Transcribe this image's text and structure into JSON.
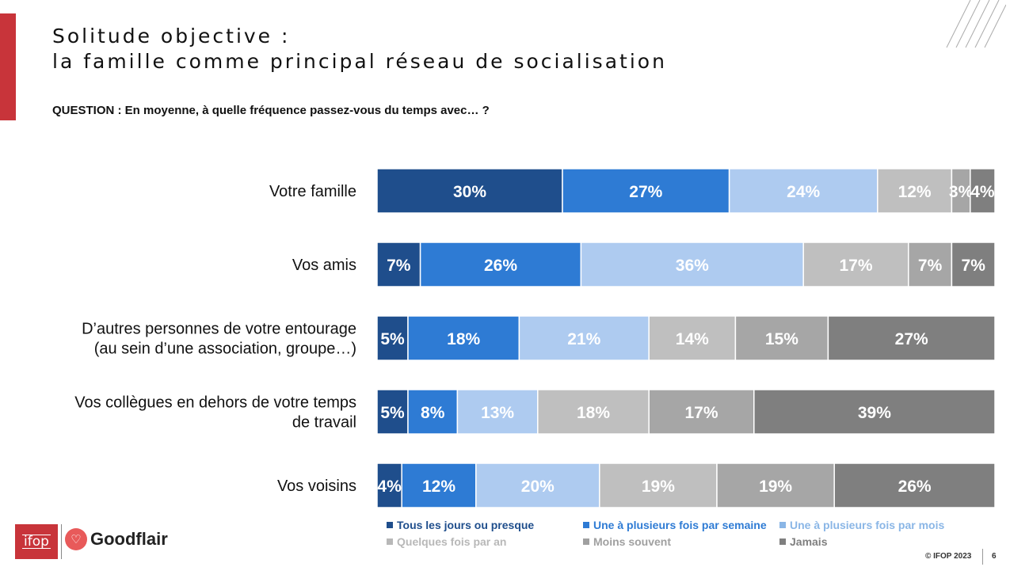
{
  "title": {
    "line1": "Solitude objective :",
    "line2": "la famille comme principal réseau de socialisation"
  },
  "question": "QUESTION : En moyenne, à quelle fréquence passez-vous du temps avec… ?",
  "logos": {
    "ifop": "ifop",
    "goodflair": "Goodflair"
  },
  "footer": {
    "copyright": "© IFOP 2023",
    "page": "6"
  },
  "chart_data": {
    "type": "bar",
    "orientation": "horizontal",
    "stacked": true,
    "unit": "%",
    "xlim": [
      0,
      100
    ],
    "categories": [
      [
        "Votre famille"
      ],
      [
        "Vos amis"
      ],
      [
        "D’autres personnes de votre entourage",
        "(au sein d’une association, groupe…)"
      ],
      [
        "Vos collègues en dehors de votre temps",
        "de travail"
      ],
      [
        "Vos voisins"
      ]
    ],
    "series": [
      {
        "name": "Tous les jours ou presque",
        "color": "#1f4e8c",
        "label_color": "#ffffff",
        "legend_color": "#1f4e8c",
        "values": [
          30,
          7,
          5,
          5,
          4
        ]
      },
      {
        "name": "Une à plusieurs fois par semaine",
        "color": "#2e7bd4",
        "label_color": "#ffffff",
        "legend_color": "#2e7bd4",
        "values": [
          27,
          26,
          18,
          8,
          12
        ]
      },
      {
        "name": "Une à plusieurs fois par mois",
        "color": "#aecbf0",
        "label_color": "#ffffff",
        "legend_color": "#8ab6e6",
        "values": [
          24,
          36,
          21,
          13,
          20
        ]
      },
      {
        "name": "Quelques fois par an",
        "color": "#bfbfbf",
        "label_color": "#ffffff",
        "legend_color": "#b8b8b8",
        "values": [
          12,
          17,
          14,
          18,
          19
        ]
      },
      {
        "name": "Moins souvent",
        "color": "#a6a6a6",
        "label_color": "#ffffff",
        "legend_color": "#a0a0a0",
        "values": [
          3,
          7,
          15,
          17,
          19
        ]
      },
      {
        "name": "Jamais",
        "color": "#7f7f7f",
        "label_color": "#ffffff",
        "legend_color": "#7f7f7f",
        "values": [
          4,
          7,
          27,
          39,
          26
        ]
      }
    ],
    "legend_position": "bottom"
  }
}
